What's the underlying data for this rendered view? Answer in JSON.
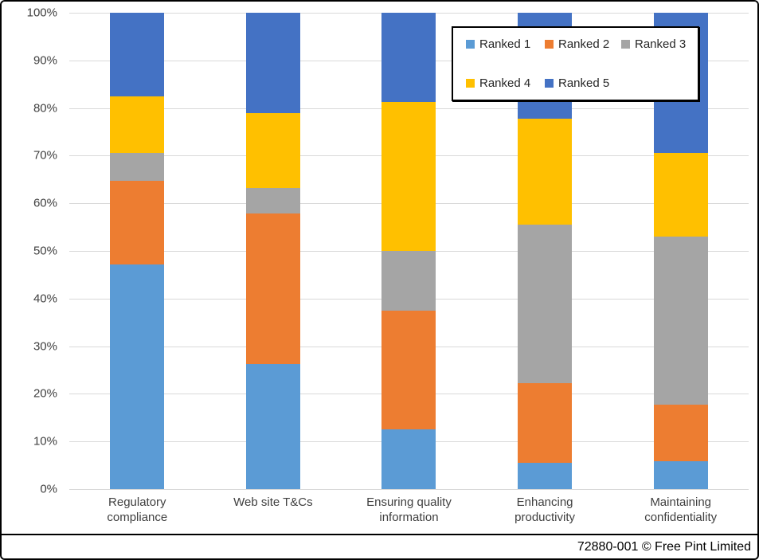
{
  "footer": {
    "credit": "72880-001 © Free Pint Limited"
  },
  "chart_data": {
    "type": "bar",
    "subtype": "stacked-100-percent-column",
    "title": "",
    "xlabel": "",
    "ylabel": "",
    "categories": [
      "Regulatory compliance",
      "Web site T&Cs",
      "Ensuring quality information",
      "Enhancing productivity",
      "Maintaining confidentiality"
    ],
    "series": [
      {
        "name": "Ranked 1",
        "color": "#5B9BD5",
        "values": [
          47.1,
          26.3,
          12.5,
          5.6,
          5.9
        ]
      },
      {
        "name": "Ranked 2",
        "color": "#ED7D31",
        "values": [
          17.6,
          31.6,
          25.0,
          16.7,
          11.8
        ]
      },
      {
        "name": "Ranked 3",
        "color": "#A5A5A5",
        "values": [
          5.9,
          5.3,
          12.5,
          33.3,
          35.3
        ]
      },
      {
        "name": "Ranked 4",
        "color": "#FFC000",
        "values": [
          11.8,
          15.8,
          31.3,
          22.2,
          17.6
        ]
      },
      {
        "name": "Ranked 5",
        "color": "#4472C4",
        "values": [
          17.6,
          21.1,
          18.8,
          22.2,
          29.4
        ]
      }
    ],
    "y_ticks": [
      "100%",
      "90%",
      "80%",
      "70%",
      "60%",
      "50%",
      "40%",
      "30%",
      "20%",
      "10%",
      "0%"
    ],
    "ylim": [
      0,
      100
    ],
    "grid": true,
    "gridline_color": "#d9d9d9",
    "axis_text_color": "#404040",
    "legend_position": "top-right-inside",
    "legend_rows": [
      [
        "Ranked 1",
        "Ranked 2",
        "Ranked 3"
      ],
      [
        "Ranked 4",
        "Ranked 5"
      ]
    ]
  }
}
